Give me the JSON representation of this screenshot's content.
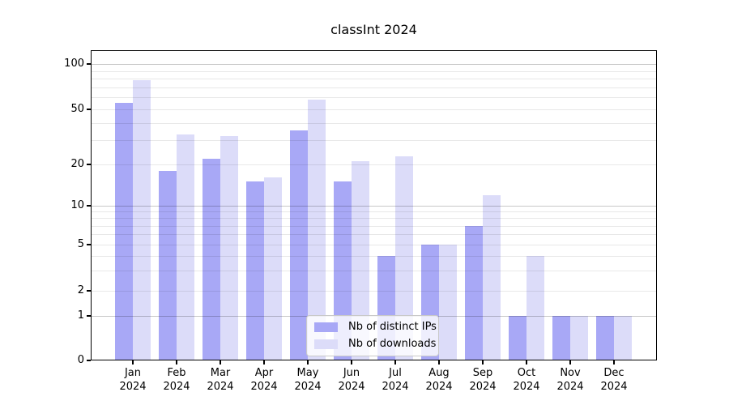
{
  "chart_data": {
    "type": "bar",
    "title": "classInt 2024",
    "x_year": "2024",
    "categories": [
      "Jan",
      "Feb",
      "Mar",
      "Apr",
      "May",
      "Jun",
      "Jul",
      "Aug",
      "Sep",
      "Oct",
      "Nov",
      "Dec"
    ],
    "series": [
      {
        "name": "Nb of distinct IPs",
        "color": "#a8a8f6",
        "values": [
          55,
          18,
          22,
          15,
          35,
          15,
          4,
          5,
          7,
          1,
          1,
          1
        ]
      },
      {
        "name": "Nb of downloads",
        "color": "#dcdcf9",
        "values": [
          78,
          33,
          32,
          16,
          58,
          21,
          23,
          5,
          12,
          4,
          1,
          1
        ]
      }
    ],
    "y_ticks": [
      0,
      1,
      2,
      5,
      10,
      20,
      50,
      100
    ],
    "y_major_gridlines": [
      1,
      10,
      100
    ],
    "y_minor_gridlines": [
      2,
      3,
      4,
      5,
      6,
      7,
      8,
      9,
      20,
      30,
      40,
      50,
      60,
      70,
      80,
      90
    ],
    "y_scale": "symlog",
    "ylim": [
      0,
      120
    ],
    "grid": true,
    "legend_position": "bottom-center"
  }
}
